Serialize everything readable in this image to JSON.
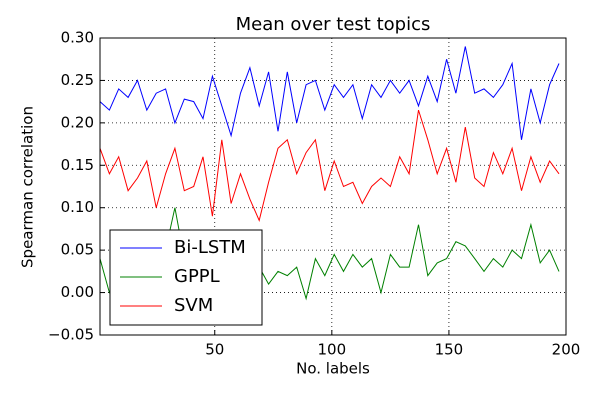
{
  "chart_data": {
    "type": "line",
    "title": "Mean over test topics",
    "xlabel": "No. labels",
    "ylabel": "Spearman correlation",
    "x": [
      1,
      5,
      9,
      13,
      17,
      21,
      25,
      29,
      33,
      37,
      41,
      45,
      49,
      53,
      57,
      61,
      65,
      69,
      73,
      77,
      81,
      85,
      89,
      93,
      97,
      101,
      105,
      109,
      113,
      117,
      121,
      125,
      129,
      133,
      137,
      141,
      145,
      149,
      153,
      157,
      161,
      165,
      169,
      173,
      177,
      181,
      185,
      189,
      193,
      197
    ],
    "series": [
      {
        "name": "Bi-LSTM",
        "color": "#0000ff",
        "values": [
          0.225,
          0.215,
          0.24,
          0.23,
          0.25,
          0.215,
          0.235,
          0.24,
          0.2,
          0.228,
          0.225,
          0.205,
          0.255,
          0.22,
          0.185,
          0.235,
          0.265,
          0.22,
          0.26,
          0.19,
          0.26,
          0.2,
          0.245,
          0.25,
          0.215,
          0.245,
          0.23,
          0.245,
          0.205,
          0.245,
          0.23,
          0.25,
          0.235,
          0.25,
          0.22,
          0.255,
          0.225,
          0.275,
          0.235,
          0.29,
          0.235,
          0.24,
          0.23,
          0.245,
          0.27,
          0.18,
          0.24,
          0.2,
          0.245,
          0.27
        ]
      },
      {
        "name": "GPPL",
        "color": "#008000",
        "values": [
          0.04,
          0.0,
          0.01,
          0.02,
          0.03,
          0.02,
          0.04,
          0.05,
          0.1,
          0.04,
          0.03,
          0.02,
          0.03,
          0.01,
          0.02,
          0.0,
          0.02,
          0.03,
          0.01,
          0.025,
          0.02,
          0.03,
          -0.007,
          0.04,
          0.02,
          0.045,
          0.025,
          0.045,
          0.03,
          0.04,
          0.0,
          0.045,
          0.03,
          0.03,
          0.08,
          0.02,
          0.035,
          0.04,
          0.06,
          0.055,
          0.04,
          0.025,
          0.04,
          0.03,
          0.05,
          0.04,
          0.08,
          0.035,
          0.05,
          0.025
        ]
      },
      {
        "name": "SVM",
        "color": "#ff0000",
        "values": [
          0.17,
          0.14,
          0.16,
          0.12,
          0.135,
          0.155,
          0.1,
          0.14,
          0.17,
          0.12,
          0.125,
          0.16,
          0.09,
          0.18,
          0.105,
          0.14,
          0.11,
          0.085,
          0.13,
          0.17,
          0.18,
          0.14,
          0.165,
          0.18,
          0.12,
          0.155,
          0.125,
          0.13,
          0.105,
          0.125,
          0.135,
          0.125,
          0.16,
          0.14,
          0.215,
          0.18,
          0.14,
          0.17,
          0.13,
          0.195,
          0.135,
          0.125,
          0.165,
          0.14,
          0.17,
          0.12,
          0.16,
          0.13,
          0.155,
          0.14
        ]
      }
    ],
    "xlim": [
      1,
      200
    ],
    "xticks": [
      50,
      100,
      150,
      200
    ],
    "ylim": [
      -0.05,
      0.3
    ],
    "yticks": [
      {
        "value": -0.05,
        "label": "−0.05"
      },
      {
        "value": 0,
        "label": "0.00"
      },
      {
        "value": 0.05,
        "label": "0.05"
      },
      {
        "value": 0.1,
        "label": "0.10"
      },
      {
        "value": 0.15,
        "label": "0.15"
      },
      {
        "value": 0.2,
        "label": "0.20"
      },
      {
        "value": 0.25,
        "label": "0.25"
      },
      {
        "value": 0.3,
        "label": "0.30"
      }
    ],
    "grid": true,
    "legend": "lower left"
  }
}
